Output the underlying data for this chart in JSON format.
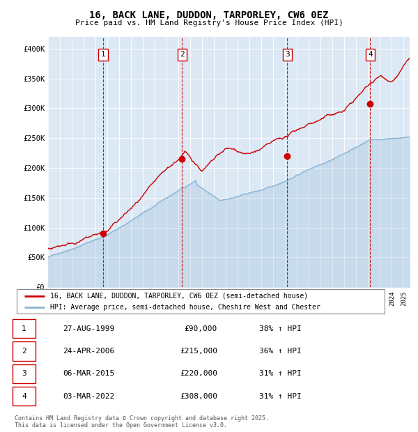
{
  "title": "16, BACK LANE, DUDDON, TARPORLEY, CW6 0EZ",
  "subtitle": "Price paid vs. HM Land Registry's House Price Index (HPI)",
  "plot_bg_color": "#dce9f5",
  "hpi_line_color": "#8ab4d4",
  "price_line_color": "#cc0000",
  "sale_marker_color": "#cc0000",
  "vline_color": "#cc0000",
  "ylim": [
    0,
    420000
  ],
  "yticks": [
    0,
    50000,
    100000,
    150000,
    200000,
    250000,
    300000,
    350000,
    400000
  ],
  "ytick_labels": [
    "£0",
    "£50K",
    "£100K",
    "£150K",
    "£200K",
    "£250K",
    "£300K",
    "£350K",
    "£400K"
  ],
  "sales": [
    {
      "date_num": 1999.65,
      "price": 90000,
      "label": "1"
    },
    {
      "date_num": 2006.31,
      "price": 215000,
      "label": "2"
    },
    {
      "date_num": 2015.17,
      "price": 220000,
      "label": "3"
    },
    {
      "date_num": 2022.17,
      "price": 308000,
      "label": "4"
    }
  ],
  "table_rows": [
    {
      "num": "1",
      "date": "27-AUG-1999",
      "price": "£90,000",
      "hpi": "38% ↑ HPI"
    },
    {
      "num": "2",
      "date": "24-APR-2006",
      "price": "£215,000",
      "hpi": "36% ↑ HPI"
    },
    {
      "num": "3",
      "date": "06-MAR-2015",
      "price": "£220,000",
      "hpi": "31% ↑ HPI"
    },
    {
      "num": "4",
      "date": "03-MAR-2022",
      "price": "£308,000",
      "hpi": "31% ↑ HPI"
    }
  ],
  "legend_entries": [
    "16, BACK LANE, DUDDON, TARPORLEY, CW6 0EZ (semi-detached house)",
    "HPI: Average price, semi-detached house, Cheshire West and Chester"
  ],
  "footnote": "Contains HM Land Registry data © Crown copyright and database right 2025.\nThis data is licensed under the Open Government Licence v3.0.",
  "start_year": 1995,
  "end_year": 2025
}
